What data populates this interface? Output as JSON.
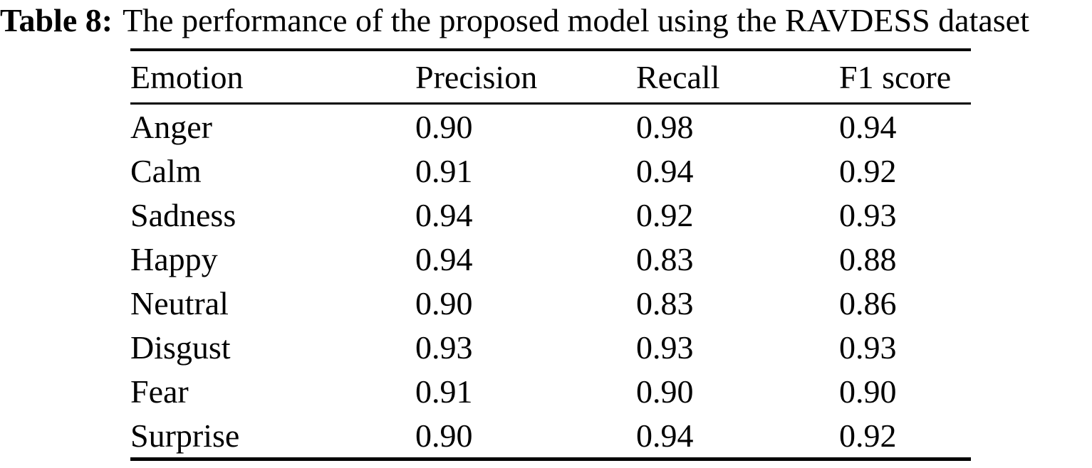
{
  "caption": {
    "label": "Table 8:",
    "text": "The performance of the proposed model using the RAVDESS dataset"
  },
  "table": {
    "columns": [
      "Emotion",
      "Precision",
      "Recall",
      "F1 score"
    ],
    "rows": [
      [
        "Anger",
        "0.90",
        "0.98",
        "0.94"
      ],
      [
        "Calm",
        "0.91",
        "0.94",
        "0.92"
      ],
      [
        "Sadness",
        "0.94",
        "0.92",
        "0.93"
      ],
      [
        "Happy",
        "0.94",
        "0.83",
        "0.88"
      ],
      [
        "Neutral",
        "0.90",
        "0.83",
        "0.86"
      ],
      [
        "Disgust",
        "0.93",
        "0.93",
        "0.93"
      ],
      [
        "Fear",
        "0.91",
        "0.90",
        "0.90"
      ],
      [
        "Surprise",
        "0.90",
        "0.94",
        "0.92"
      ]
    ]
  }
}
